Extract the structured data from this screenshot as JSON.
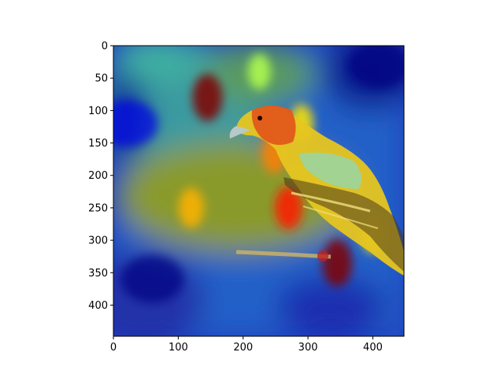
{
  "chart_data": {
    "type": "heatmap",
    "title": "",
    "xlabel": "",
    "ylabel": "",
    "xlim": [
      0,
      448
    ],
    "ylim": [
      448,
      0
    ],
    "x_ticks": [
      0,
      100,
      200,
      300,
      400
    ],
    "y_ticks": [
      0,
      50,
      100,
      150,
      200,
      250,
      300,
      350,
      400
    ],
    "colormap": "jet",
    "overlay": "class-activation heatmap blended over a photo of a yellow-and-orange bird perched on a branch",
    "grid": false,
    "legend": "none",
    "hotspots": [
      {
        "x": 145,
        "y": 80,
        "level": 1.0
      },
      {
        "x": 248,
        "y": 165,
        "level": 0.75
      },
      {
        "x": 270,
        "y": 250,
        "level": 0.85
      },
      {
        "x": 345,
        "y": 335,
        "level": 1.0
      },
      {
        "x": 400,
        "y": 290,
        "level": 0.65
      },
      {
        "x": 225,
        "y": 40,
        "level": 0.55
      },
      {
        "x": 120,
        "y": 250,
        "level": 0.7
      },
      {
        "x": 290,
        "y": 120,
        "level": 0.65
      }
    ],
    "cold_regions": [
      {
        "x": 60,
        "y": 360,
        "level": 0.0
      },
      {
        "x": 410,
        "y": 30,
        "level": 0.0
      },
      {
        "x": 20,
        "y": 120,
        "level": 0.1
      }
    ]
  },
  "colors": {
    "deep_blue": "#0a1fa8",
    "bird_yellow": "#f2d21e",
    "bird_orange": "#e85a1c",
    "heat_red": "#8b0000",
    "axis": "#000000"
  }
}
